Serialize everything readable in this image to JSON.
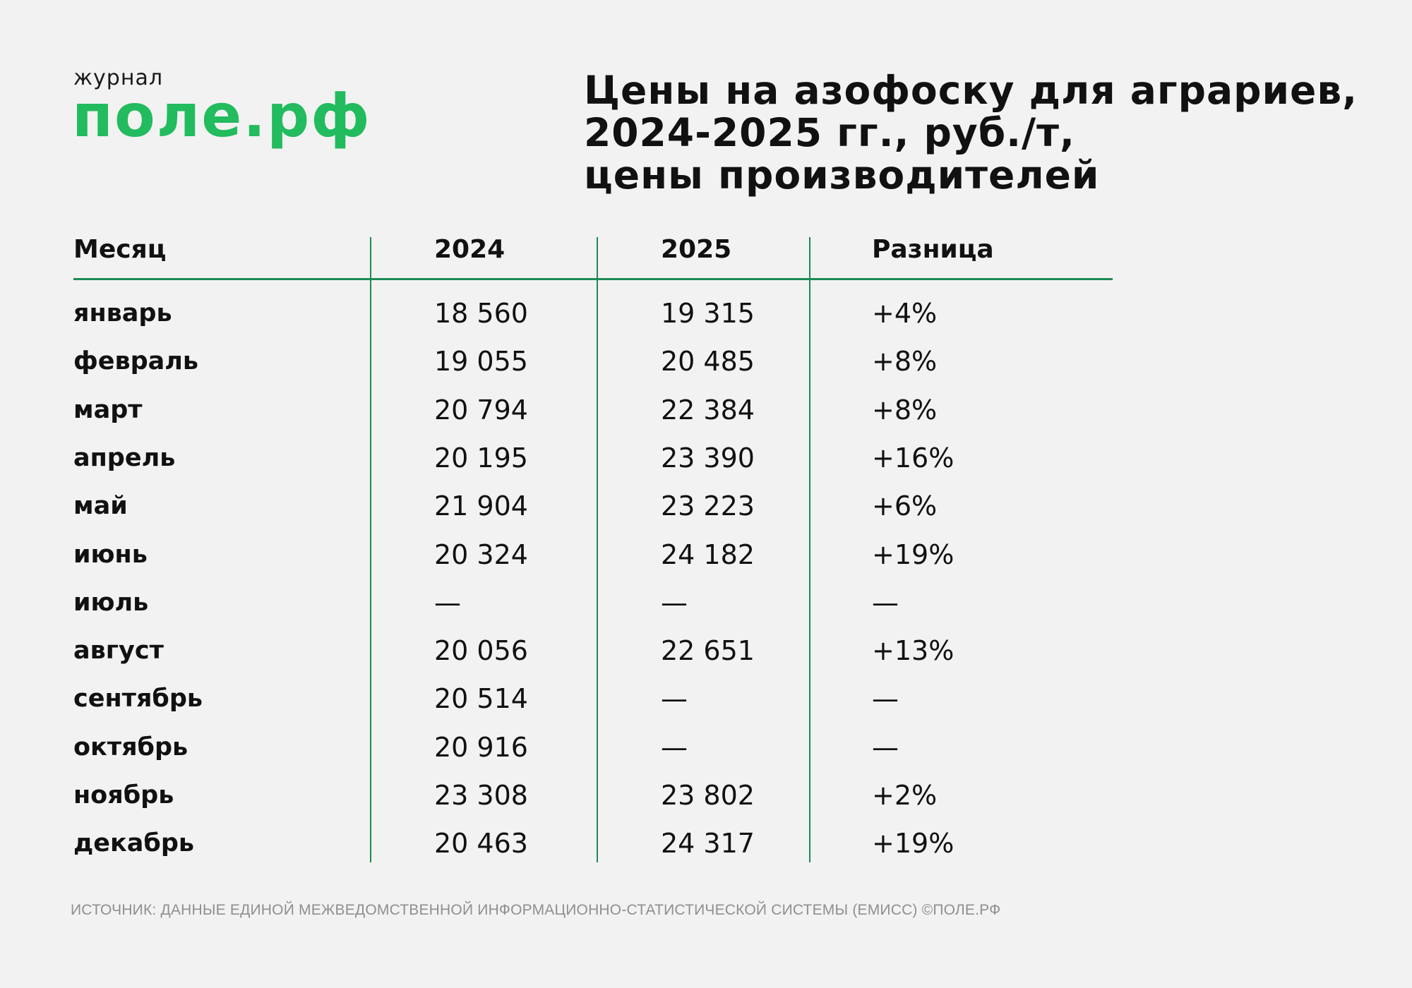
{
  "logo": {
    "small": "журнал",
    "big": "поле.рф"
  },
  "title": {
    "line1": "Цены на азофоску для аграриев,",
    "line2": "2024-2025 гг., руб./т,",
    "line3": "цены производителей"
  },
  "table": {
    "headers": [
      "Месяц",
      "2024",
      "2025",
      "Разница"
    ],
    "rows": [
      {
        "month": "январь",
        "y2024": "18 560",
        "y2025": "19 315",
        "diff": "+4%"
      },
      {
        "month": "февраль",
        "y2024": "19 055",
        "y2025": "20 485",
        "diff": "+8%"
      },
      {
        "month": "март",
        "y2024": "20 794",
        "y2025": "22 384",
        "diff": "+8%"
      },
      {
        "month": "апрель",
        "y2024": "20 195",
        "y2025": "23 390",
        "diff": "+16%"
      },
      {
        "month": "май",
        "y2024": "21 904",
        "y2025": "23 223",
        "diff": "+6%"
      },
      {
        "month": "июнь",
        "y2024": "20 324",
        "y2025": "24 182",
        "diff": "+19%"
      },
      {
        "month": "июль",
        "y2024": "—",
        "y2025": "—",
        "diff": "—"
      },
      {
        "month": "август",
        "y2024": "20 056",
        "y2025": "22 651",
        "diff": "+13%"
      },
      {
        "month": "сентябрь",
        "y2024": "20 514",
        "y2025": "—",
        "diff": "—"
      },
      {
        "month": "октябрь",
        "y2024": "20 916",
        "y2025": "—",
        "diff": "—"
      },
      {
        "month": "ноябрь",
        "y2024": "23 308",
        "y2025": "23 802",
        "diff": "+2%"
      },
      {
        "month": "декабрь",
        "y2024": "20 463",
        "y2025": "24 317",
        "diff": "+19%"
      }
    ]
  },
  "source": "ИСТОЧНИК: ДАННЫЕ ЕДИНОЙ МЕЖВЕДОМСТВЕННОЙ ИНФОРМАЦИОННО-СТАТИСТИЧЕСКОЙ СИСТЕМЫ (ЕМИСС) ©ПОЛЕ.РФ",
  "colors": {
    "brand_green": "#22bb5e",
    "rule_green": "#1e8a55",
    "background": "#f2f2f2",
    "text": "#111111",
    "source_text": "#8f8f8f"
  },
  "chart_data": {
    "type": "table",
    "title": "Цены на азофоску для аграриев, 2024-2025 гг., руб./т, цены производителей",
    "columns": [
      "Месяц",
      "2024",
      "2025",
      "Разница"
    ],
    "categories": [
      "январь",
      "февраль",
      "март",
      "апрель",
      "май",
      "июнь",
      "июль",
      "август",
      "сентябрь",
      "октябрь",
      "ноябрь",
      "декабрь"
    ],
    "series": [
      {
        "name": "2024",
        "values": [
          18560,
          19055,
          20794,
          20195,
          21904,
          20324,
          null,
          20056,
          20514,
          20916,
          23308,
          20463
        ]
      },
      {
        "name": "2025",
        "values": [
          19315,
          20485,
          22384,
          23390,
          23223,
          24182,
          null,
          22651,
          null,
          null,
          23802,
          24317
        ]
      },
      {
        "name": "Разница",
        "values": [
          "+4%",
          "+8%",
          "+8%",
          "+16%",
          "+6%",
          "+19%",
          null,
          "+13%",
          null,
          null,
          "+2%",
          "+19%"
        ]
      }
    ],
    "unit": "руб./т",
    "source": "ИСТОЧНИК: ДАННЫЕ ЕДИНОЙ МЕЖВЕДОМСТВЕННОЙ ИНФОРМАЦИОННО-СТАТИСТИЧЕСКОЙ СИСТЕМЫ (ЕМИСС) ©ПОЛЕ.РФ"
  }
}
